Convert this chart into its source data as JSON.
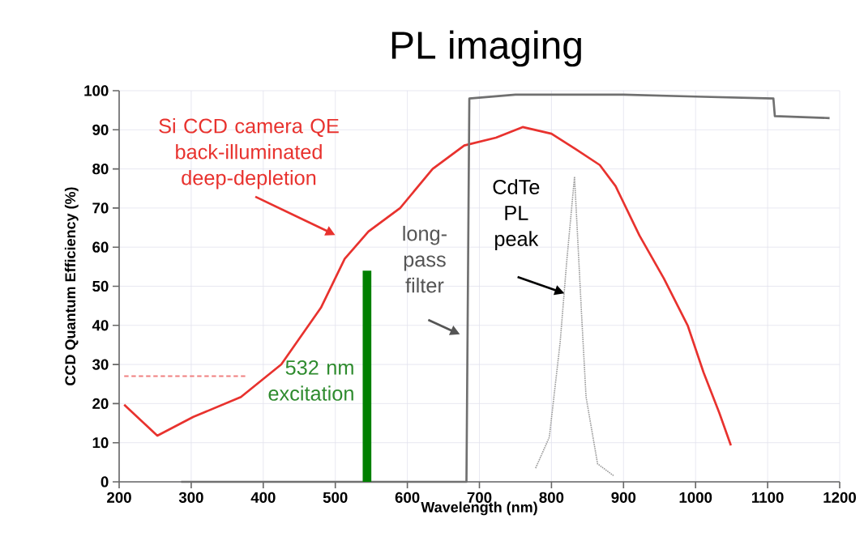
{
  "chart_data": {
    "type": "line",
    "title": "PL imaging",
    "xlabel": "Wavelength (nm)",
    "ylabel": "CCD Quantum Efficiency (%)",
    "xlim": [
      200,
      1200
    ],
    "ylim": [
      0,
      100
    ],
    "xticks": [
      200,
      300,
      400,
      500,
      600,
      700,
      800,
      900,
      1000,
      1100,
      1200
    ],
    "yticks": [
      0,
      10,
      20,
      30,
      40,
      50,
      60,
      70,
      80,
      90,
      100
    ],
    "grid": true,
    "marker": "none",
    "series": [
      {
        "color": "#e8322e",
        "line_style": "solid",
        "x": [
          207,
          253,
          303,
          369,
          425,
          480,
          513,
          546,
          590,
          635,
          679,
          723,
          760,
          800,
          834,
          867,
          889,
          922,
          956,
          989,
          1011,
          1033,
          1049
        ],
        "values": [
          19.7,
          11.8,
          16.6,
          21.7,
          30,
          44.5,
          57,
          64,
          70,
          80,
          86,
          88,
          90.7,
          89,
          85,
          81,
          75.6,
          63,
          52,
          40,
          28,
          17.6,
          9.3
        ]
      },
      {
        "color": "#f08080",
        "line_style": "dashed",
        "x": [
          207,
          375
        ],
        "values": [
          27,
          27
        ]
      },
      {
        "color": "#707070",
        "line_style": "solid",
        "x": [
          286,
          682,
          686,
          750,
          900,
          1000,
          1108,
          1110,
          1186
        ],
        "values": [
          0,
          0,
          98,
          99,
          99,
          98.5,
          98,
          93.5,
          93
        ]
      },
      {
        "color": "#999999",
        "line_style": "dotted",
        "x": [
          778,
          797,
          812,
          821,
          832,
          842,
          848,
          864,
          886
        ],
        "values": [
          3.5,
          11.4,
          35.6,
          56,
          78,
          42,
          21.7,
          4.6,
          1.6
        ]
      },
      {
        "type": "bar",
        "color": "#008000",
        "x": [
          544
        ],
        "values": [
          54
        ]
      }
    ],
    "annotations": [
      "Si CCD camera QE back-illuminated deep-depletion",
      "532 nm excitation",
      "long-pass filter",
      "CdTe PL peak"
    ]
  }
}
